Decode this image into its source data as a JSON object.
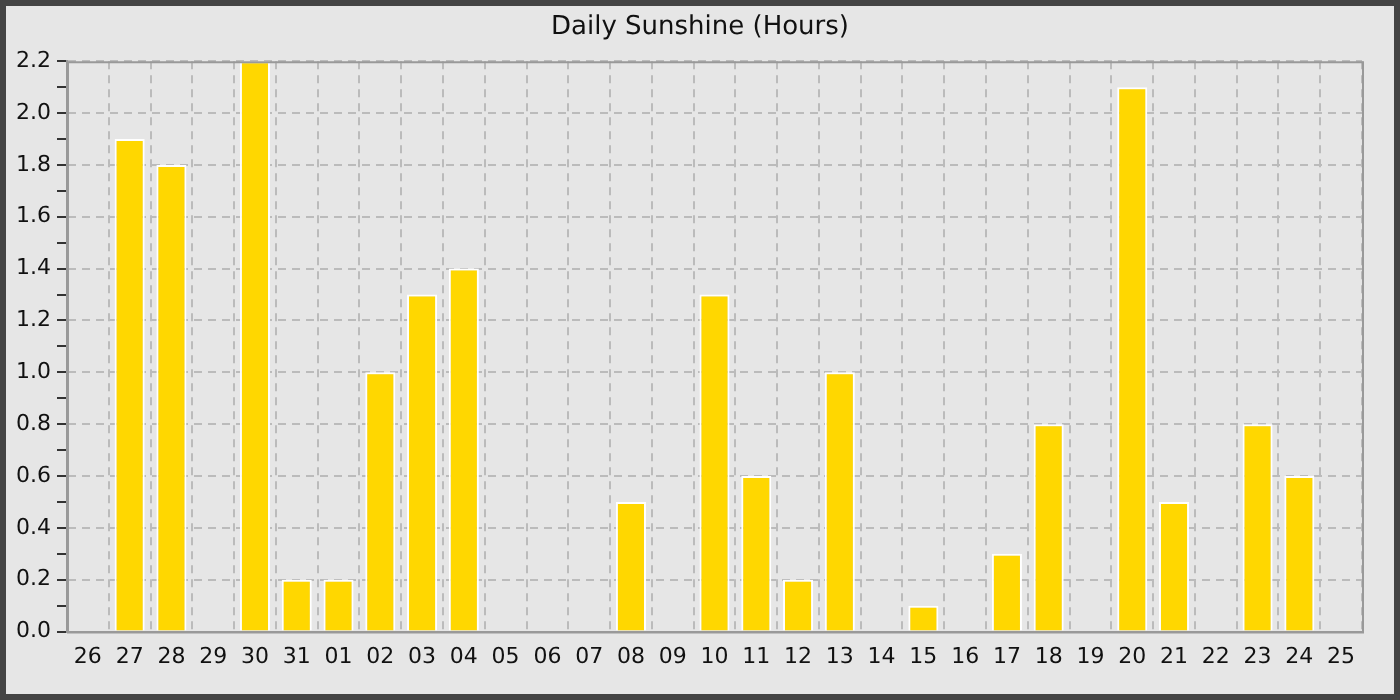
{
  "chart_data": {
    "type": "bar",
    "title": "Daily Sunshine (Hours)",
    "categories": [
      "26",
      "27",
      "28",
      "29",
      "30",
      "31",
      "01",
      "02",
      "03",
      "04",
      "05",
      "06",
      "07",
      "08",
      "09",
      "10",
      "11",
      "12",
      "13",
      "14",
      "15",
      "16",
      "17",
      "18",
      "19",
      "20",
      "21",
      "22",
      "23",
      "24",
      "25"
    ],
    "values": [
      0,
      1.9,
      1.8,
      0,
      2.2,
      0.2,
      0.2,
      1.0,
      1.3,
      1.4,
      0,
      0,
      0,
      0.5,
      0,
      1.3,
      0.6,
      0.2,
      1.0,
      0,
      0.1,
      0,
      0.3,
      0.8,
      0,
      2.1,
      0.5,
      0,
      0.8,
      0.6,
      0
    ],
    "color": "#ffd700",
    "ylim": [
      0,
      2.2
    ],
    "yticks": [
      {
        "value": 0,
        "label": "0.0"
      },
      {
        "value": 0.1,
        "label": null
      },
      {
        "value": 0.2,
        "label": "0.2"
      },
      {
        "value": 0.3,
        "label": null
      },
      {
        "value": 0.4,
        "label": "0.4"
      },
      {
        "value": 0.5,
        "label": null
      },
      {
        "value": 0.6,
        "label": "0.6"
      },
      {
        "value": 0.7,
        "label": null
      },
      {
        "value": 0.8,
        "label": "0.8"
      },
      {
        "value": 0.9,
        "label": null
      },
      {
        "value": 1.0,
        "label": "1.0"
      },
      {
        "value": 1.1,
        "label": null
      },
      {
        "value": 1.2,
        "label": "1.2"
      },
      {
        "value": 1.3,
        "label": null
      },
      {
        "value": 1.4,
        "label": "1.4"
      },
      {
        "value": 1.5,
        "label": null
      },
      {
        "value": 1.6,
        "label": "1.6"
      },
      {
        "value": 1.7,
        "label": null
      },
      {
        "value": 1.8,
        "label": "1.8"
      },
      {
        "value": 1.9,
        "label": null
      },
      {
        "value": 2.0,
        "label": "2.0"
      },
      {
        "value": 2.1,
        "label": null
      },
      {
        "value": 2.2,
        "label": "2.2"
      }
    ],
    "grid": true
  }
}
